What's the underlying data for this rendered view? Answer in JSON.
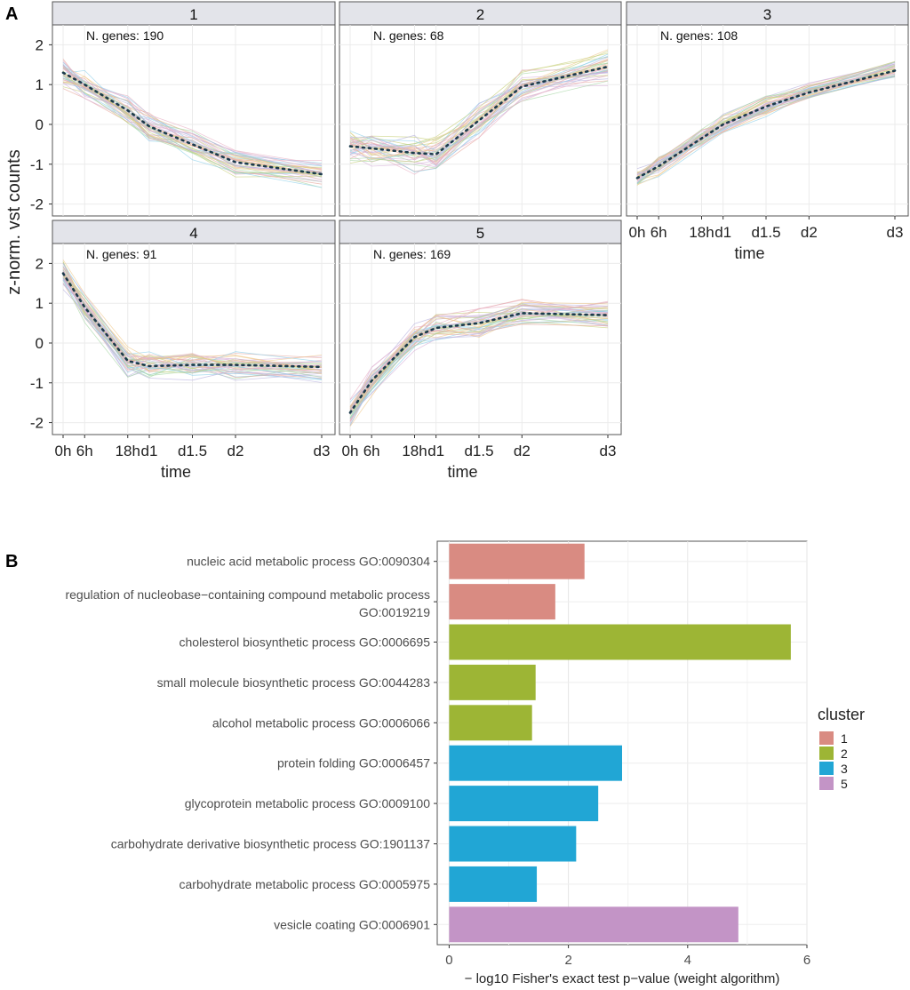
{
  "panel_labels": {
    "a": "A",
    "b": "B"
  },
  "colors": {
    "cluster1": "#d98b82",
    "cluster2": "#9db535",
    "cluster3": "#21a6d5",
    "cluster5": "#c394c6",
    "strip_bg": "#e3e4ea",
    "mean_line": "#1b3a4b"
  },
  "chart_data": [
    {
      "type": "line",
      "title": "",
      "xlabel": "time",
      "ylabel": "z-norm. vst  counts",
      "x_ticks": [
        "0h",
        "6h",
        "18h",
        "d1",
        "d1.5",
        "d2",
        "d3"
      ],
      "x_hours": [
        0,
        6,
        18,
        24,
        36,
        48,
        72
      ],
      "y_ticks": [
        2,
        1,
        0,
        -1,
        -2
      ],
      "ylim": [
        -2.3,
        2.5
      ],
      "count_prefix": "N. genes: ",
      "facets": [
        {
          "title": "1",
          "n_genes": 190,
          "mean": [
            1.3,
            1.0,
            0.35,
            -0.05,
            -0.5,
            -0.95,
            -1.25
          ],
          "spread": 0.3
        },
        {
          "title": "2",
          "n_genes": 68,
          "mean": [
            -0.55,
            -0.6,
            -0.72,
            -0.75,
            0.1,
            0.95,
            1.45
          ],
          "spread": 0.4
        },
        {
          "title": "3",
          "n_genes": 108,
          "mean": [
            -1.35,
            -1.05,
            -0.35,
            0.0,
            0.45,
            0.8,
            1.35
          ],
          "spread": 0.2
        },
        {
          "title": "4",
          "n_genes": 91,
          "mean": [
            1.75,
            0.9,
            -0.45,
            -0.58,
            -0.55,
            -0.55,
            -0.6
          ],
          "spread": 0.3
        },
        {
          "title": "5",
          "n_genes": 169,
          "mean": [
            -1.75,
            -0.95,
            0.15,
            0.38,
            0.5,
            0.75,
            0.7
          ],
          "spread": 0.3
        }
      ]
    },
    {
      "type": "bar",
      "orientation": "horizontal",
      "xlabel": "− log10 Fisher's exact test p−value (weight algorithm)",
      "ylabel": "",
      "xlim": [
        -0.2,
        6.0
      ],
      "x_ticks": [
        0,
        2,
        4,
        6
      ],
      "legend_title": "cluster",
      "legend_position": "right",
      "legend": [
        {
          "label": "1",
          "color": "#d98b82"
        },
        {
          "label": "2",
          "color": "#9db535"
        },
        {
          "label": "3",
          "color": "#21a6d5"
        },
        {
          "label": "5",
          "color": "#c394c6"
        }
      ],
      "bars": [
        {
          "term": "nucleic acid metabolic process GO:0090304",
          "cluster": "1",
          "value": 2.27
        },
        {
          "term": "regulation of nucleobase−containing compound metabolic process GO:0019219",
          "cluster": "1",
          "value": 1.78
        },
        {
          "term": "cholesterol biosynthetic process GO:0006695",
          "cluster": "2",
          "value": 5.73
        },
        {
          "term": "small molecule biosynthetic process GO:0044283",
          "cluster": "2",
          "value": 1.45
        },
        {
          "term": "alcohol metabolic process GO:0006066",
          "cluster": "2",
          "value": 1.39
        },
        {
          "term": "protein folding GO:0006457",
          "cluster": "3",
          "value": 2.9
        },
        {
          "term": "glycoprotein metabolic process GO:0009100",
          "cluster": "3",
          "value": 2.5
        },
        {
          "term": "carbohydrate derivative biosynthetic process GO:1901137",
          "cluster": "3",
          "value": 2.13
        },
        {
          "term": "carbohydrate metabolic process GO:0005975",
          "cluster": "3",
          "value": 1.47
        },
        {
          "term": "vesicle coating GO:0006901",
          "cluster": "5",
          "value": 4.85
        }
      ]
    }
  ]
}
